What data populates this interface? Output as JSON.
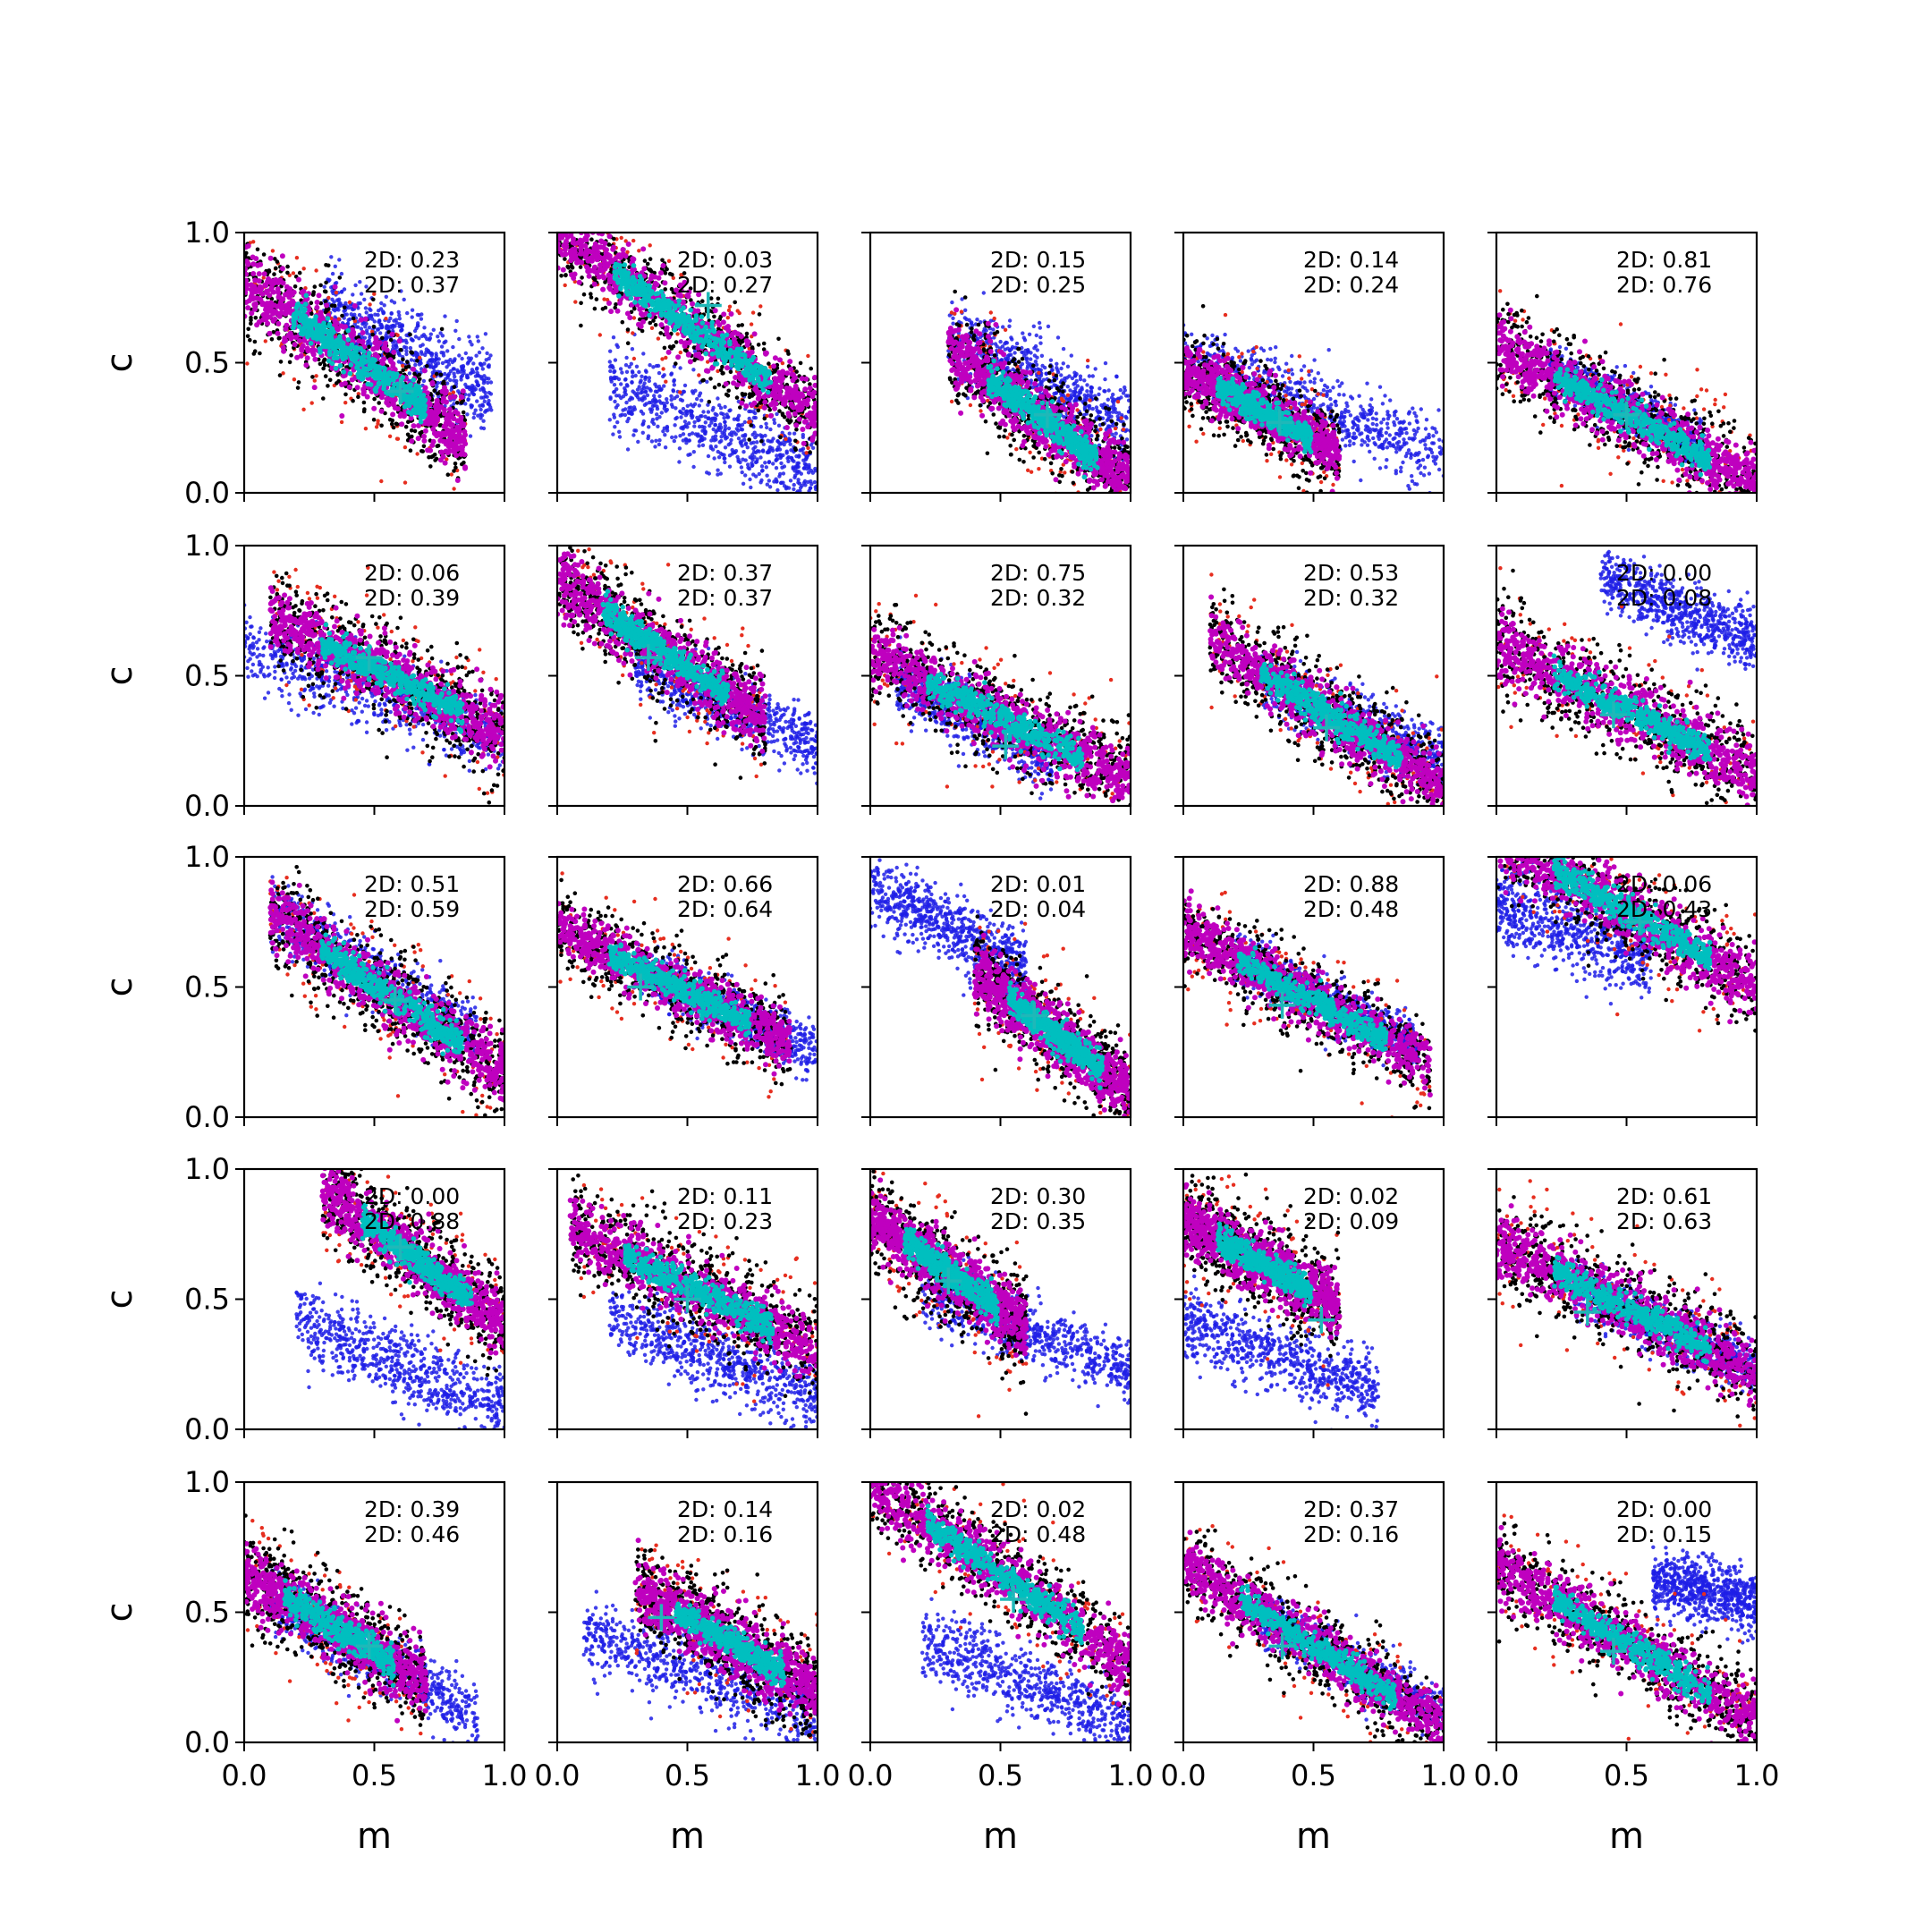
{
  "chart_data": {
    "type": "scatter",
    "layout": {
      "rows": 5,
      "cols": 5
    },
    "xlabel": "m",
    "ylabel": "c",
    "xlim": [
      0,
      1
    ],
    "ylim": [
      0,
      1
    ],
    "xticks": [
      "0.0",
      "0.5",
      "1.0"
    ],
    "yticks": [
      "0.0",
      "0.5",
      "1.0"
    ],
    "annotation_prefix": "2D: ",
    "colors": {
      "reference_points": "#1f1fe6",
      "outer_points": "#e62e1f",
      "contour_points": "#000000",
      "inner_points": "#bf00bf",
      "core_points": "#00bfbf",
      "truth_marker": "#1fb8b8"
    },
    "marker": "+",
    "panels": [
      {
        "values": [
          "0.23",
          "0.37"
        ],
        "truth": [
          0.6,
          0.39
        ],
        "cloud": {
          "m": [
            0.0,
            0.85
          ],
          "c0": 0.82,
          "slope": -0.72,
          "spread": 0.09
        },
        "blue": {
          "m": [
            0.3,
            0.95
          ],
          "c0": 0.86,
          "slope": -0.5,
          "spread": 0.08
        }
      },
      {
        "values": [
          "0.03",
          "0.27"
        ],
        "truth": [
          0.58,
          0.72
        ],
        "cloud": {
          "m": [
            0.0,
            1.0
          ],
          "c0": 1.0,
          "slope": -0.7,
          "spread": 0.08
        },
        "blue": {
          "m": [
            0.2,
            1.0
          ],
          "c0": 0.5,
          "slope": -0.42,
          "spread": 0.08
        }
      },
      {
        "values": [
          "0.15",
          "0.25"
        ],
        "truth": [
          0.68,
          0.3
        ],
        "cloud": {
          "m": [
            0.3,
            1.0
          ],
          "c0": 0.78,
          "slope": -0.75,
          "spread": 0.08
        },
        "blue": {
          "m": [
            0.3,
            1.0
          ],
          "c0": 0.75,
          "slope": -0.5,
          "spread": 0.08
        }
      },
      {
        "values": [
          "0.14",
          "0.24"
        ],
        "truth": [
          0.37,
          0.27
        ],
        "cloud": {
          "m": [
            0.0,
            0.6
          ],
          "c0": 0.48,
          "slope": -0.55,
          "spread": 0.07
        },
        "blue": {
          "m": [
            0.0,
            1.0
          ],
          "c0": 0.53,
          "slope": -0.38,
          "spread": 0.07
        }
      },
      {
        "values": [
          "0.81",
          "0.76"
        ],
        "truth": [
          0.5,
          0.3
        ],
        "cloud": {
          "m": [
            0.0,
            1.0
          ],
          "c0": 0.56,
          "slope": -0.52,
          "spread": 0.08
        },
        "blue": {
          "m": [
            0.2,
            0.8
          ],
          "c0": 0.58,
          "slope": -0.5,
          "spread": 0.05
        }
      },
      {
        "values": [
          "0.06",
          "0.39"
        ],
        "truth": [
          0.48,
          0.57
        ],
        "cloud": {
          "m": [
            0.1,
            1.0
          ],
          "c0": 0.78,
          "slope": -0.5,
          "spread": 0.08
        },
        "blue": {
          "m": [
            0.0,
            1.0
          ],
          "c0": 0.62,
          "slope": -0.36,
          "spread": 0.07
        }
      },
      {
        "values": [
          "0.37",
          "0.37"
        ],
        "truth": [
          0.35,
          0.57
        ],
        "cloud": {
          "m": [
            0.0,
            0.8
          ],
          "c0": 0.87,
          "slope": -0.68,
          "spread": 0.08
        },
        "blue": {
          "m": [
            0.3,
            1.0
          ],
          "c0": 0.68,
          "slope": -0.45,
          "spread": 0.06
        }
      },
      {
        "values": [
          "0.75",
          "0.32"
        ],
        "truth": [
          0.52,
          0.23
        ],
        "cloud": {
          "m": [
            0.0,
            1.0
          ],
          "c0": 0.58,
          "slope": -0.48,
          "spread": 0.08
        },
        "blue": {
          "m": [
            0.1,
            0.7
          ],
          "c0": 0.55,
          "slope": -0.55,
          "spread": 0.06
        }
      },
      {
        "values": [
          "0.53",
          "0.32"
        ],
        "truth": [
          0.55,
          0.3
        ],
        "cloud": {
          "m": [
            0.1,
            1.0
          ],
          "c0": 0.7,
          "slope": -0.63,
          "spread": 0.08
        },
        "blue": {
          "m": [
            0.3,
            1.0
          ],
          "c0": 0.62,
          "slope": -0.45,
          "spread": 0.06
        }
      },
      {
        "values": [
          "0.00",
          "0.08"
        ],
        "truth": [
          0.45,
          0.35
        ],
        "cloud": {
          "m": [
            0.0,
            1.0
          ],
          "c0": 0.62,
          "slope": -0.5,
          "spread": 0.08
        },
        "blue": {
          "m": [
            0.4,
            1.0
          ],
          "c0": 1.05,
          "slope": -0.42,
          "spread": 0.06
        }
      },
      {
        "values": [
          "0.51",
          "0.59"
        ],
        "truth": [
          0.58,
          0.45
        ],
        "cloud": {
          "m": [
            0.1,
            1.0
          ],
          "c0": 0.85,
          "slope": -0.68,
          "spread": 0.08
        },
        "blue": {
          "m": [
            0.1,
            0.9
          ],
          "c0": 0.85,
          "slope": -0.6,
          "spread": 0.06
        }
      },
      {
        "values": [
          "0.66",
          "0.64"
        ],
        "truth": [
          0.32,
          0.5
        ],
        "cloud": {
          "m": [
            0.0,
            0.9
          ],
          "c0": 0.73,
          "slope": -0.5,
          "spread": 0.07
        },
        "blue": {
          "m": [
            0.3,
            1.0
          ],
          "c0": 0.7,
          "slope": -0.45,
          "spread": 0.05
        }
      },
      {
        "values": [
          "0.01",
          "0.04"
        ],
        "truth": [
          0.63,
          0.39
        ],
        "cloud": {
          "m": [
            0.4,
            1.0
          ],
          "c0": 0.85,
          "slope": -0.75,
          "spread": 0.08
        },
        "blue": {
          "m": [
            0.0,
            0.6
          ],
          "c0": 0.88,
          "slope": -0.5,
          "spread": 0.07
        }
      },
      {
        "values": [
          "0.88",
          "0.48"
        ],
        "truth": [
          0.38,
          0.43
        ],
        "cloud": {
          "m": [
            0.0,
            0.95
          ],
          "c0": 0.72,
          "slope": -0.55,
          "spread": 0.07
        },
        "blue": {
          "m": [
            0.2,
            0.9
          ],
          "c0": 0.72,
          "slope": -0.5,
          "spread": 0.05
        }
      },
      {
        "values": [
          "0.06",
          "0.43"
        ],
        "truth": [
          0.55,
          0.75
        ],
        "cloud": {
          "m": [
            0.0,
            1.0
          ],
          "c0": 1.08,
          "slope": -0.58,
          "spread": 0.08
        },
        "blue": {
          "m": [
            0.0,
            0.6
          ],
          "c0": 0.82,
          "slope": -0.35,
          "spread": 0.08
        }
      },
      {
        "values": [
          "0.00",
          "0.88"
        ],
        "truth": [
          0.6,
          0.7
        ],
        "cloud": {
          "m": [
            0.3,
            1.0
          ],
          "c0": 1.15,
          "slope": -0.75,
          "spread": 0.08
        },
        "blue": {
          "m": [
            0.2,
            1.0
          ],
          "c0": 0.5,
          "slope": -0.42,
          "spread": 0.07
        }
      },
      {
        "values": [
          "0.11",
          "0.23"
        ],
        "truth": [
          0.5,
          0.5
        ],
        "cloud": {
          "m": [
            0.05,
            1.0
          ],
          "c0": 0.8,
          "slope": -0.5,
          "spread": 0.08
        },
        "blue": {
          "m": [
            0.2,
            1.0
          ],
          "c0": 0.52,
          "slope": -0.4,
          "spread": 0.07
        }
      },
      {
        "values": [
          "0.30",
          "0.35"
        ],
        "truth": [
          0.3,
          0.57
        ],
        "cloud": {
          "m": [
            0.0,
            0.6
          ],
          "c0": 0.82,
          "slope": -0.72,
          "spread": 0.08
        },
        "blue": {
          "m": [
            0.2,
            1.0
          ],
          "c0": 0.62,
          "slope": -0.4,
          "spread": 0.06
        }
      },
      {
        "values": [
          "0.02",
          "0.09"
        ],
        "truth": [
          0.53,
          0.42
        ],
        "cloud": {
          "m": [
            0.0,
            0.6
          ],
          "c0": 0.8,
          "slope": -0.55,
          "spread": 0.08
        },
        "blue": {
          "m": [
            0.0,
            0.75
          ],
          "c0": 0.42,
          "slope": -0.38,
          "spread": 0.07
        }
      },
      {
        "values": [
          "0.61",
          "0.63"
        ],
        "truth": [
          0.35,
          0.45
        ],
        "cloud": {
          "m": [
            0.0,
            1.0
          ],
          "c0": 0.72,
          "slope": -0.5,
          "spread": 0.08
        },
        "blue": {
          "m": [
            0.3,
            1.0
          ],
          "c0": 0.68,
          "slope": -0.45,
          "spread": 0.05
        }
      },
      {
        "values": [
          "0.39",
          "0.46"
        ],
        "truth": [
          0.48,
          0.37
        ],
        "cloud": {
          "m": [
            0.0,
            0.7
          ],
          "c0": 0.65,
          "slope": -0.6,
          "spread": 0.08
        },
        "blue": {
          "m": [
            0.1,
            0.9
          ],
          "c0": 0.6,
          "slope": -0.56,
          "spread": 0.06
        }
      },
      {
        "values": [
          "0.14",
          "0.16"
        ],
        "truth": [
          0.4,
          0.48
        ],
        "cloud": {
          "m": [
            0.3,
            1.0
          ],
          "c0": 0.75,
          "slope": -0.55,
          "spread": 0.08
        },
        "blue": {
          "m": [
            0.1,
            1.0
          ],
          "c0": 0.45,
          "slope": -0.35,
          "spread": 0.07
        }
      },
      {
        "values": [
          "0.02",
          "0.48"
        ],
        "truth": [
          0.55,
          0.55
        ],
        "cloud": {
          "m": [
            0.0,
            1.0
          ],
          "c0": 1.0,
          "slope": -0.7,
          "spread": 0.08
        },
        "blue": {
          "m": [
            0.2,
            1.0
          ],
          "c0": 0.48,
          "slope": -0.42,
          "spread": 0.07
        }
      },
      {
        "values": [
          "0.37",
          "0.16"
        ],
        "truth": [
          0.38,
          0.37
        ],
        "cloud": {
          "m": [
            0.0,
            1.0
          ],
          "c0": 0.68,
          "slope": -0.62,
          "spread": 0.07
        },
        "blue": {
          "m": [
            0.3,
            1.0
          ],
          "c0": 0.65,
          "slope": -0.55,
          "spread": 0.05
        }
      },
      {
        "values": [
          "0.00",
          "0.15"
        ],
        "truth": [
          0.45,
          0.35
        ],
        "cloud": {
          "m": [
            0.0,
            1.0
          ],
          "c0": 0.68,
          "slope": -0.6,
          "spread": 0.08
        },
        "blue": {
          "m": [
            0.6,
            1.0
          ],
          "c0": 0.78,
          "slope": -0.25,
          "spread": 0.06
        }
      }
    ]
  }
}
